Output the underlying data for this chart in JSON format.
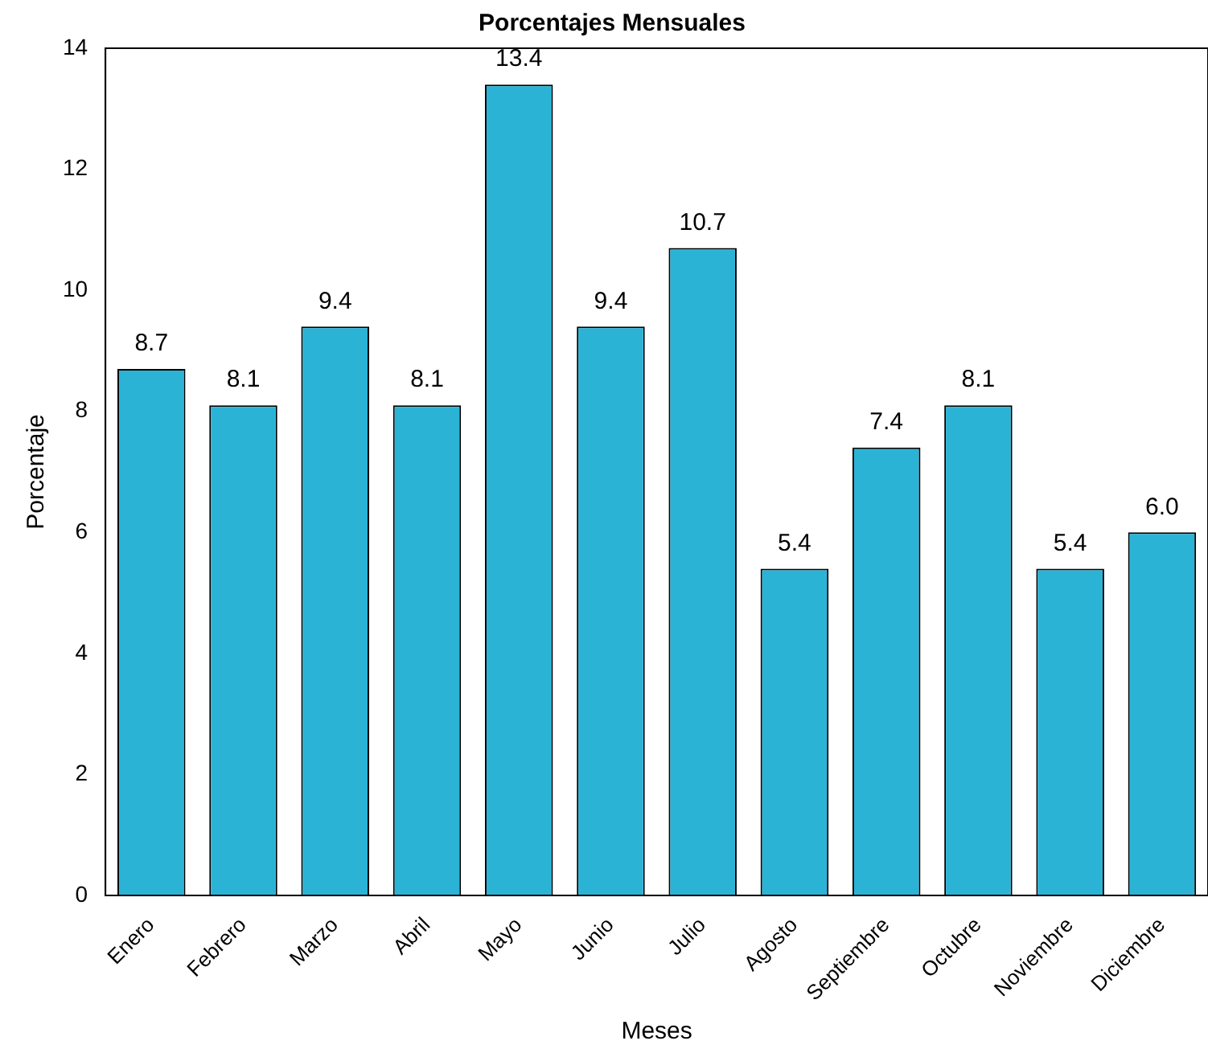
{
  "chart_data": {
    "type": "bar",
    "title": "Porcentajes Mensuales",
    "xlabel": "Meses",
    "ylabel": "Porcentaje",
    "categories": [
      "Enero",
      "Febrero",
      "Marzo",
      "Abril",
      "Mayo",
      "Junio",
      "Julio",
      "Agosto",
      "Septiembre",
      "Octubre",
      "Noviembre",
      "Diciembre"
    ],
    "values": [
      8.7,
      8.1,
      9.4,
      8.1,
      13.4,
      9.4,
      10.7,
      5.4,
      7.4,
      8.1,
      5.4,
      6.0
    ],
    "value_labels": [
      "8.7",
      "8.1",
      "9.4",
      "8.1",
      "13.4",
      "9.4",
      "10.7",
      "5.4",
      "7.4",
      "8.1",
      "5.4",
      "6.0"
    ],
    "color": "#2bb3d6",
    "ylim": [
      0,
      14
    ],
    "yticks": [
      0,
      2,
      4,
      6,
      8,
      10,
      12,
      14
    ],
    "grid": false,
    "legend": false
  }
}
